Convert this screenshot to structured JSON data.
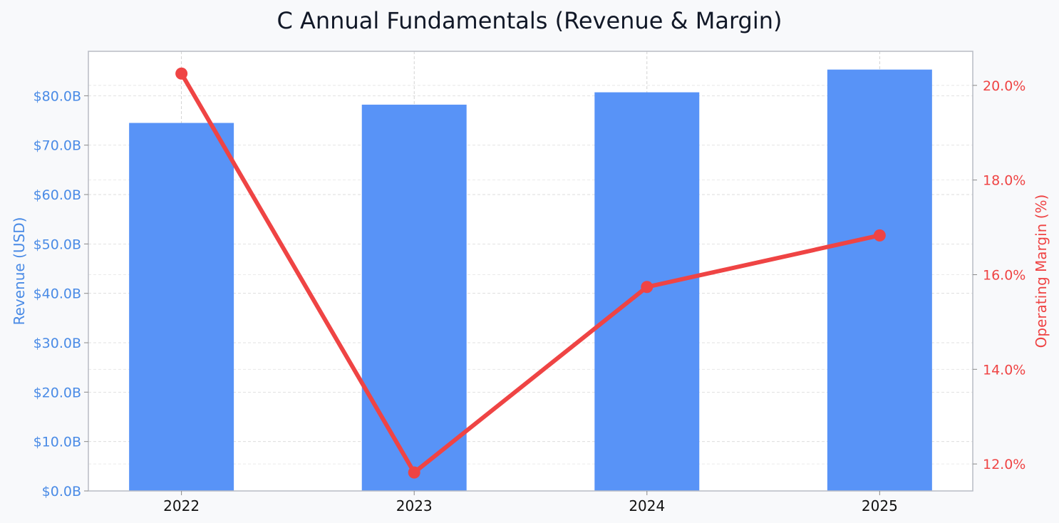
{
  "chart_data": {
    "type": "bar",
    "title": "C Annual Fundamentals (Revenue & Margin)",
    "categories": [
      "2022",
      "2023",
      "2024",
      "2025"
    ],
    "series": [
      {
        "type": "bar",
        "axis": "left",
        "values": [
          74.5,
          78.2,
          80.7,
          85.3
        ],
        "color": "#5893f7"
      },
      {
        "type": "line",
        "axis": "right",
        "values": [
          20.25,
          11.82,
          15.74,
          16.83
        ],
        "color": "#ef4444"
      }
    ],
    "y_left": {
      "label": "Revenue (USD)",
      "range": [
        0,
        89
      ],
      "ticks": [
        0,
        10,
        20,
        30,
        40,
        50,
        60,
        70,
        80
      ],
      "tick_labels": [
        "$0.0B",
        "$10.0B",
        "$20.0B",
        "$30.0B",
        "$40.0B",
        "$50.0B",
        "$60.0B",
        "$70.0B",
        "$80.0B"
      ],
      "color": "#4a8be6"
    },
    "y_right": {
      "label": "Operating Margin (%)",
      "range": [
        11.43,
        20.72
      ],
      "ticks": [
        12,
        14,
        16,
        18,
        20
      ],
      "tick_labels": [
        "12.0%",
        "14.0%",
        "16.0%",
        "18.0%",
        "20.0%"
      ],
      "color": "#ef4444"
    },
    "grid": true,
    "legend": "none"
  }
}
